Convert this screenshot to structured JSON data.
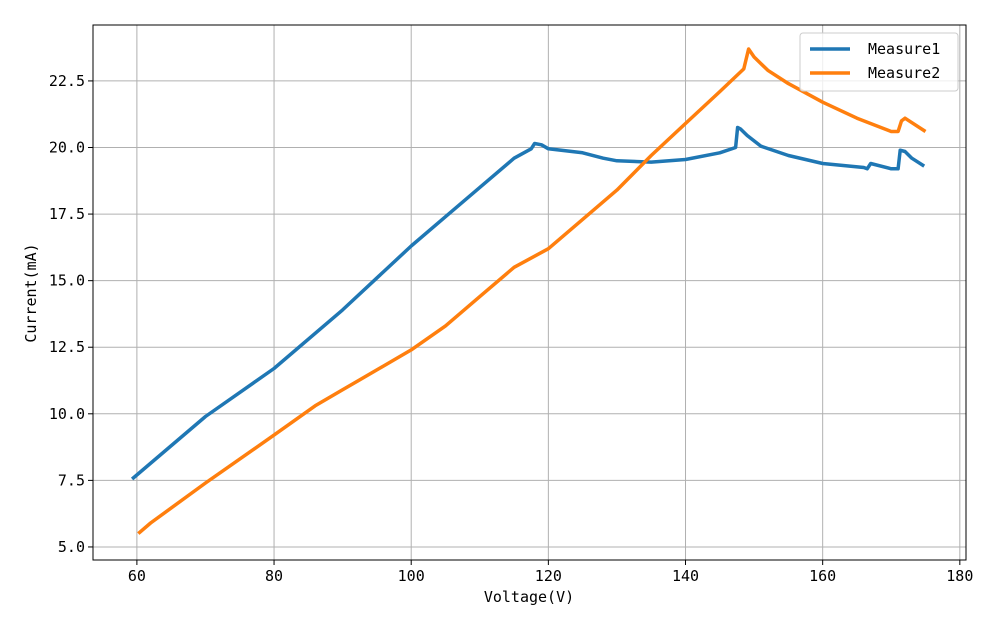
{
  "chart_data": {
    "type": "line",
    "x_label": "Voltage(V)",
    "y_label": "Current(mA)",
    "xlim": [
      53.6,
      180.9
    ],
    "ylim": [
      4.51,
      24.6
    ],
    "xticks": [
      60,
      80,
      100,
      120,
      140,
      160,
      180
    ],
    "yticks": [
      {
        "value": 5,
        "label": "5.0"
      },
      7.5,
      {
        "value": 10,
        "label": "10.0"
      },
      12.5,
      {
        "value": 15,
        "label": "15.0"
      },
      17.5,
      {
        "value": 20,
        "label": "20.0"
      },
      22.5
    ],
    "grid": true,
    "legend": "upper right",
    "series": [
      {
        "name": "Measure1",
        "color": "#1f77b4",
        "x": [
          59.3,
          70,
          80,
          90,
          100,
          105,
          110,
          115,
          117.5,
          118,
          119,
          120,
          125,
          128,
          130,
          135,
          140,
          145,
          147.3,
          147.6,
          148,
          149,
          151,
          155,
          160,
          166,
          166.5,
          167,
          170,
          171,
          171.3,
          172,
          173,
          174.8
        ],
        "values": [
          7.55,
          9.9,
          11.7,
          13.9,
          16.3,
          17.4,
          18.5,
          19.6,
          19.95,
          20.15,
          20.1,
          19.95,
          19.8,
          19.6,
          19.5,
          19.45,
          19.55,
          19.8,
          20.0,
          20.75,
          20.7,
          20.45,
          20.05,
          19.7,
          19.4,
          19.25,
          19.2,
          19.4,
          19.2,
          19.2,
          19.9,
          19.85,
          19.6,
          19.3
        ]
      },
      {
        "name": "Measure2",
        "color": "#ff7f0e",
        "x": [
          60.2,
          62,
          70,
          80,
          86,
          90,
          100,
          105,
          110,
          115,
          120,
          125,
          130,
          135,
          140,
          145,
          148.5,
          149.2,
          150,
          152,
          155,
          160,
          165,
          170,
          171,
          171.5,
          172,
          175
        ],
        "values": [
          5.5,
          5.9,
          7.4,
          9.2,
          10.3,
          10.9,
          12.4,
          13.3,
          14.4,
          15.5,
          16.2,
          17.3,
          18.4,
          19.7,
          20.9,
          22.1,
          22.95,
          23.7,
          23.4,
          22.9,
          22.4,
          21.7,
          21.1,
          20.6,
          20.6,
          21.0,
          21.1,
          20.6
        ]
      }
    ]
  }
}
